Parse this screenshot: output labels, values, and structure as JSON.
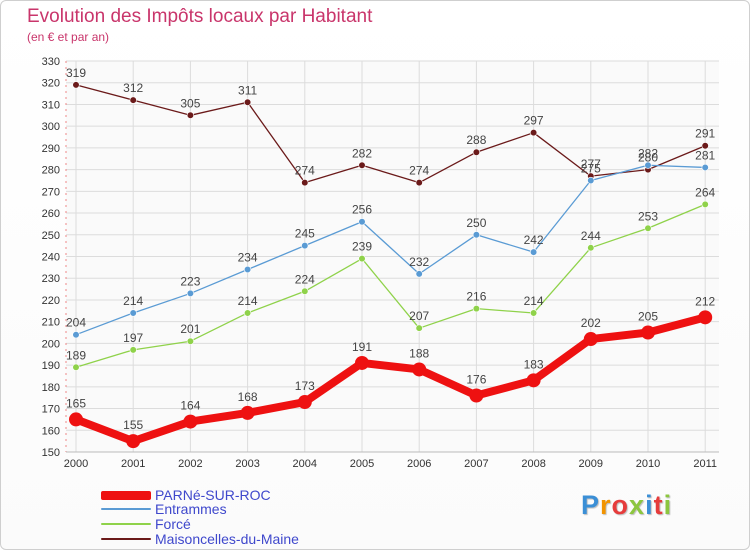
{
  "title": "Evolution des Impôts locaux par Habitant",
  "subtitle": "(en € et par an)",
  "logo": {
    "text": "Proxiti",
    "colors": [
      "#3b8fd6",
      "#f29400",
      "#e63c3c",
      "#8cc63f",
      "#3b8fd6",
      "#e63c3c",
      "#8cc63f"
    ]
  },
  "chart_data": {
    "type": "line",
    "title": "Evolution des Impôts locaux par Habitant",
    "subtitle": "(en € et par an)",
    "xlabel": "",
    "ylabel": "",
    "x": [
      "2000",
      "2001",
      "2002",
      "2003",
      "2004",
      "2005",
      "2006",
      "2007",
      "2008",
      "2009",
      "2010",
      "2011"
    ],
    "ylim": [
      150,
      330
    ],
    "yticks": [
      150,
      160,
      170,
      180,
      190,
      200,
      210,
      220,
      230,
      240,
      250,
      260,
      270,
      280,
      290,
      300,
      310,
      320,
      330
    ],
    "grid": true,
    "legend_position": "bottom-left",
    "series": [
      {
        "name": "Maisoncelles-du-Maine",
        "color": "#6b1a1a",
        "values": [
          319,
          312,
          305,
          311,
          274,
          282,
          274,
          288,
          297,
          277,
          280,
          291
        ],
        "thick": false
      },
      {
        "name": "Entrammes",
        "color": "#5a9bd4",
        "values": [
          204,
          214,
          223,
          234,
          245,
          256,
          232,
          250,
          242,
          275,
          282,
          281
        ],
        "thick": false
      },
      {
        "name": "Forcé",
        "color": "#8fd24a",
        "values": [
          189,
          197,
          201,
          214,
          224,
          239,
          207,
          216,
          214,
          244,
          253,
          264
        ],
        "thick": false
      },
      {
        "name": "PARNé-SUR-ROC",
        "color": "#ee1111",
        "values": [
          165,
          155,
          164,
          168,
          173,
          191,
          188,
          176,
          183,
          202,
          205,
          212
        ],
        "thick": true
      }
    ],
    "legend_order": [
      "PARNé-SUR-ROC",
      "Entrammes",
      "Forcé",
      "Maisoncelles-du-Maine"
    ]
  }
}
